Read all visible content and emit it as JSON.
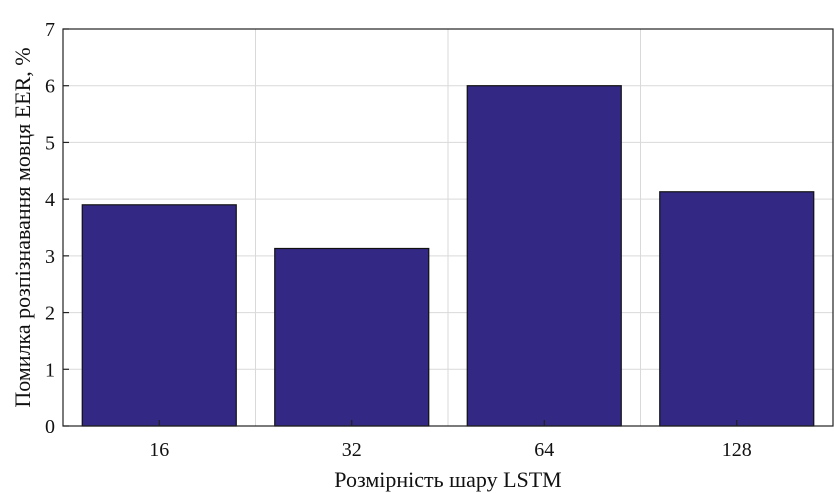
{
  "chart_data": {
    "type": "bar",
    "categories": [
      "16",
      "32",
      "64",
      "128"
    ],
    "values": [
      3.9,
      3.13,
      6.0,
      4.13
    ],
    "xlabel": "Розмірність шару LSTM",
    "ylabel": "Помилка розпізнавання мовця EER, %",
    "ylim": [
      0,
      7
    ],
    "yticks": [
      "0",
      "1",
      "2",
      "3",
      "4",
      "5",
      "6",
      "7"
    ],
    "grid": true,
    "colors": {
      "bar": "#332985",
      "bar_edge": "#111111"
    }
  }
}
